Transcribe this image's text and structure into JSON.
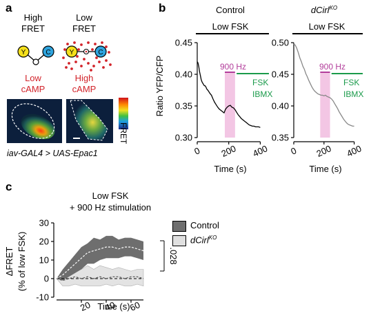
{
  "panel_a": {
    "letter": "a",
    "high_fret": "High\nFRET",
    "low_fret": "Low\nFRET",
    "low_camp": "Low\ncAMP",
    "high_camp": "High\ncAMP",
    "y_node": "Y",
    "c_node": "C",
    "colorbar_label": "FRET",
    "caption": "iav-GAL4 > UAS-Epac1",
    "colors": {
      "yfp": "#f5e01c",
      "cfp": "#2fa4de",
      "camp": "#d2232a"
    }
  },
  "panel_b": {
    "letter": "b",
    "control_title": "Control",
    "ko_title_base": "dCirl",
    "ko_title_sup": "KO",
    "low_fsk": "Low FSK",
    "hz_label": "900 Hz",
    "fsk_label": "FSK",
    "ibmx_label": "IBMX",
    "colors": {
      "stim": "#f3c6e4",
      "hz": "#b23c9a",
      "fsk": "#1a9a4a"
    }
  },
  "panel_c": {
    "letter": "c",
    "title_line1": "Low FSK",
    "title_line2": "+ 900 Hz stimulation",
    "legend_control": "Control",
    "legend_ko_base": "dCirl",
    "legend_ko_sup": "KO",
    "pvalue": ".028",
    "colors": {
      "control_band": "#6e6e6e",
      "ko_band": "#e0e0e0"
    }
  },
  "chart_data": [
    {
      "type": "line",
      "title": "Control",
      "xlabel": "Time (s)",
      "ylabel": "Ratio YFP/CFP",
      "xlim": [
        0,
        420
      ],
      "ylim": [
        0.3,
        0.45
      ],
      "xticks": [
        "0",
        "200",
        "400"
      ],
      "yticks": [
        "0.30",
        "0.35",
        "0.40",
        "0.45"
      ],
      "stim_window_s": [
        175,
        240
      ],
      "x": [
        0,
        5,
        10,
        15,
        20,
        25,
        30,
        35,
        40,
        45,
        50,
        55,
        60,
        70,
        80,
        90,
        100,
        110,
        120,
        130,
        140,
        150,
        160,
        170,
        180,
        190,
        200,
        210,
        220,
        230,
        240,
        250,
        260,
        270,
        280,
        290,
        300,
        310,
        320,
        330,
        340,
        350,
        360,
        370,
        380,
        390,
        400
      ],
      "y": [
        0.42,
        0.418,
        0.412,
        0.404,
        0.398,
        0.392,
        0.388,
        0.386,
        0.384,
        0.382,
        0.382,
        0.38,
        0.377,
        0.374,
        0.37,
        0.367,
        0.361,
        0.356,
        0.352,
        0.348,
        0.345,
        0.343,
        0.341,
        0.339,
        0.345,
        0.348,
        0.35,
        0.351,
        0.348,
        0.347,
        0.344,
        0.34,
        0.336,
        0.333,
        0.33,
        0.328,
        0.326,
        0.324,
        0.322,
        0.32,
        0.319,
        0.318,
        0.318,
        0.317,
        0.317,
        0.317,
        0.316
      ]
    },
    {
      "type": "line",
      "title": "dCirl KO",
      "xlabel": "Time (s)",
      "xlim": [
        0,
        420
      ],
      "ylim": [
        0.35,
        0.5
      ],
      "xticks": [
        "0",
        "200",
        "400"
      ],
      "yticks": [
        "0.35",
        "0.40",
        "0.45",
        "0.50"
      ],
      "stim_window_s": [
        175,
        240
      ],
      "x": [
        0,
        10,
        20,
        30,
        40,
        50,
        60,
        70,
        80,
        90,
        100,
        110,
        120,
        130,
        140,
        150,
        160,
        170,
        180,
        190,
        200,
        210,
        220,
        230,
        240,
        250,
        260,
        270,
        280,
        290,
        300,
        310,
        320,
        330,
        340,
        350,
        360,
        370,
        380,
        390,
        400
      ],
      "y": [
        0.498,
        0.496,
        0.491,
        0.484,
        0.476,
        0.47,
        0.463,
        0.458,
        0.451,
        0.446,
        0.44,
        0.435,
        0.43,
        0.426,
        0.423,
        0.421,
        0.419,
        0.418,
        0.417,
        0.417,
        0.416,
        0.417,
        0.415,
        0.414,
        0.413,
        0.411,
        0.408,
        0.404,
        0.4,
        0.396,
        0.391,
        0.387,
        0.383,
        0.379,
        0.376,
        0.373,
        0.371,
        0.37,
        0.369,
        0.368,
        0.368
      ]
    },
    {
      "type": "area",
      "xlabel": "Time (s)",
      "ylabel": "ΔFRET\n(% of low FSK)",
      "xlim": [
        0,
        70
      ],
      "ylim": [
        -10,
        30
      ],
      "xticks": [
        "20",
        "40",
        "60"
      ],
      "yticks": [
        "-10",
        "0",
        "10",
        "20",
        "30"
      ],
      "series": [
        {
          "name": "Control",
          "x": [
            0,
            5,
            10,
            15,
            20,
            25,
            30,
            35,
            40,
            45,
            50,
            55,
            60,
            65,
            70
          ],
          "mean": [
            0,
            2,
            5,
            8,
            11,
            14,
            15,
            16,
            17,
            17,
            16,
            17,
            17,
            16,
            15
          ],
          "upper": [
            0,
            5,
            9,
            13,
            17,
            19,
            22,
            21,
            23,
            23,
            21,
            22,
            22,
            21,
            20
          ],
          "lower": [
            0,
            -1,
            1,
            3,
            5,
            8,
            8,
            10,
            11,
            11,
            11,
            12,
            12,
            11,
            10
          ]
        },
        {
          "name": "dCirl KO",
          "x": [
            0,
            5,
            10,
            15,
            20,
            25,
            30,
            35,
            40,
            45,
            50,
            55,
            60,
            65,
            70
          ],
          "mean": [
            0,
            -1,
            0,
            1,
            0,
            1,
            0,
            1,
            0,
            1,
            1,
            0,
            1,
            1,
            0
          ],
          "upper": [
            0,
            3,
            4,
            4,
            5,
            7,
            5,
            7,
            6,
            5,
            6,
            5,
            4,
            5,
            5
          ],
          "lower": [
            0,
            -4,
            -4,
            -3,
            -4,
            -4,
            -4,
            -4,
            -3,
            -4,
            -3,
            -4,
            -4,
            -3,
            -4
          ]
        }
      ]
    }
  ]
}
